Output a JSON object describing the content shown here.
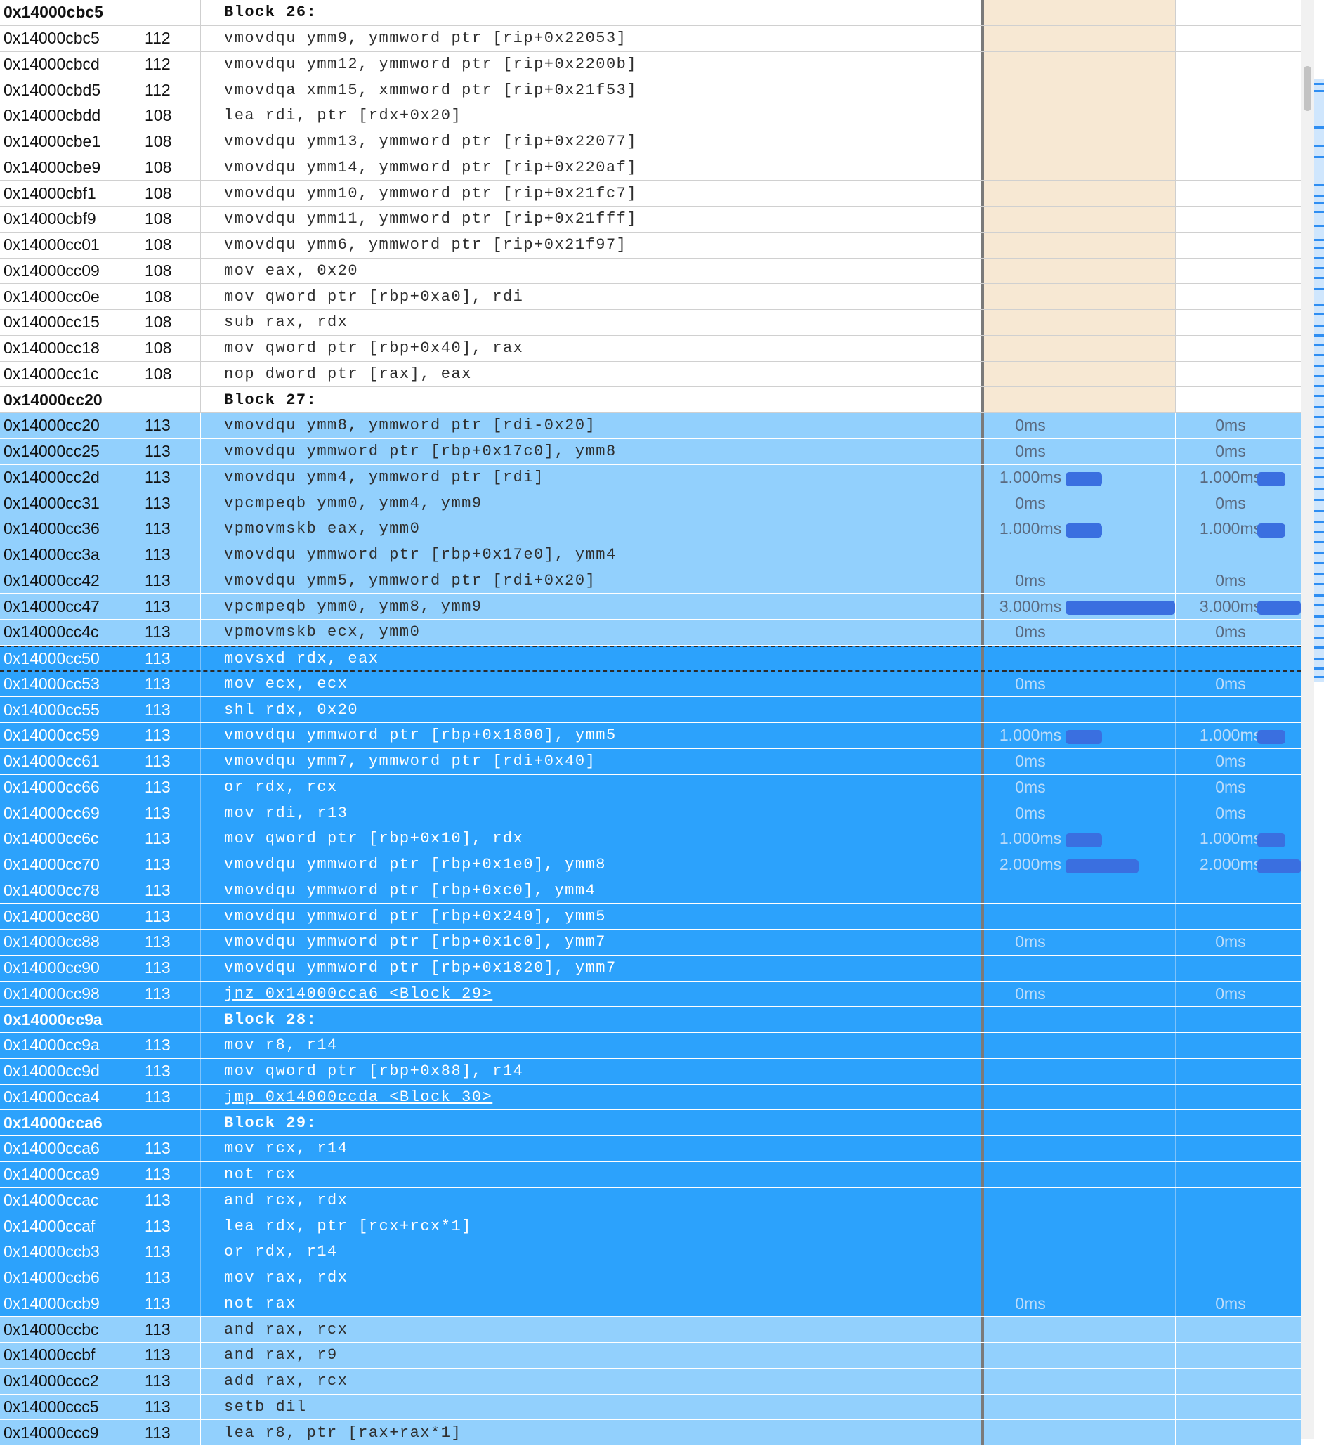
{
  "colors": {
    "light_selection": "#92d0fd",
    "dark_selection": "#2ca2fc",
    "header_pane": "#f7e8d3",
    "bar": "#3a6fe0"
  },
  "rows": [
    {
      "addr": "0x14000cbc5",
      "line": "",
      "asm": "Block 26:",
      "header": true,
      "bg": "plain",
      "t1": "",
      "t2": ""
    },
    {
      "addr": "0x14000cbc5",
      "line": "112",
      "asm": "vmovdqu ymm9, ymmword ptr [rip+0x22053]",
      "bg": "plain",
      "t1": "",
      "t2": ""
    },
    {
      "addr": "0x14000cbcd",
      "line": "112",
      "asm": "vmovdqu ymm12, ymmword ptr [rip+0x2200b]",
      "bg": "plain",
      "t1": "",
      "t2": ""
    },
    {
      "addr": "0x14000cbd5",
      "line": "112",
      "asm": "vmovdqa xmm15, xmmword ptr [rip+0x21f53]",
      "bg": "plain",
      "t1": "",
      "t2": ""
    },
    {
      "addr": "0x14000cbdd",
      "line": "108",
      "asm": "lea rdi, ptr [rdx+0x20]",
      "bg": "plain",
      "t1": "",
      "t2": ""
    },
    {
      "addr": "0x14000cbe1",
      "line": "108",
      "asm": "vmovdqu ymm13, ymmword ptr [rip+0x22077]",
      "bg": "plain",
      "t1": "",
      "t2": ""
    },
    {
      "addr": "0x14000cbe9",
      "line": "108",
      "asm": "vmovdqu ymm14, ymmword ptr [rip+0x220af]",
      "bg": "plain",
      "t1": "",
      "t2": ""
    },
    {
      "addr": "0x14000cbf1",
      "line": "108",
      "asm": "vmovdqu ymm10, ymmword ptr [rip+0x21fc7]",
      "bg": "plain",
      "t1": "",
      "t2": ""
    },
    {
      "addr": "0x14000cbf9",
      "line": "108",
      "asm": "vmovdqu ymm11, ymmword ptr [rip+0x21fff]",
      "bg": "plain",
      "t1": "",
      "t2": ""
    },
    {
      "addr": "0x14000cc01",
      "line": "108",
      "asm": "vmovdqu ymm6, ymmword ptr [rip+0x21f97]",
      "bg": "plain",
      "t1": "",
      "t2": ""
    },
    {
      "addr": "0x14000cc09",
      "line": "108",
      "asm": "mov eax, 0x20",
      "bg": "plain",
      "t1": "",
      "t2": ""
    },
    {
      "addr": "0x14000cc0e",
      "line": "108",
      "asm": "mov qword ptr [rbp+0xa0], rdi",
      "bg": "plain",
      "t1": "",
      "t2": ""
    },
    {
      "addr": "0x14000cc15",
      "line": "108",
      "asm": "sub rax, rdx",
      "bg": "plain",
      "t1": "",
      "t2": ""
    },
    {
      "addr": "0x14000cc18",
      "line": "108",
      "asm": "mov qword ptr [rbp+0x40], rax",
      "bg": "plain",
      "t1": "",
      "t2": ""
    },
    {
      "addr": "0x14000cc1c",
      "line": "108",
      "asm": "nop dword ptr [rax], eax",
      "bg": "plain",
      "t1": "",
      "t2": ""
    },
    {
      "addr": "0x14000cc20",
      "line": "",
      "asm": "Block 27:",
      "header": true,
      "bg": "plain",
      "t1": "",
      "t2": ""
    },
    {
      "addr": "0x14000cc20",
      "line": "113",
      "asm": "vmovdqu ymm8, ymmword ptr [rdi-0x20]",
      "bg": "light",
      "t1": "0ms",
      "t2": "0ms"
    },
    {
      "addr": "0x14000cc25",
      "line": "113",
      "asm": "vmovdqu ymmword ptr [rbp+0x17c0], ymm8",
      "bg": "light",
      "t1": "0ms",
      "t2": "0ms"
    },
    {
      "addr": "0x14000cc2d",
      "line": "113",
      "asm": "vmovdqu ymm4, ymmword ptr [rdi]",
      "bg": "light",
      "t1": "1.000ms",
      "t2": "1.000ms",
      "ms": 1
    },
    {
      "addr": "0x14000cc31",
      "line": "113",
      "asm": "vpcmpeqb ymm0, ymm4, ymm9",
      "bg": "light",
      "t1": "0ms",
      "t2": "0ms"
    },
    {
      "addr": "0x14000cc36",
      "line": "113",
      "asm": "vpmovmskb eax, ymm0",
      "bg": "light",
      "t1": "1.000ms",
      "t2": "1.000ms",
      "ms": 1
    },
    {
      "addr": "0x14000cc3a",
      "line": "113",
      "asm": "vmovdqu ymmword ptr [rbp+0x17e0], ymm4",
      "bg": "light",
      "t1": "",
      "t2": ""
    },
    {
      "addr": "0x14000cc42",
      "line": "113",
      "asm": "vmovdqu ymm5, ymmword ptr [rdi+0x20]",
      "bg": "light",
      "t1": "0ms",
      "t2": "0ms"
    },
    {
      "addr": "0x14000cc47",
      "line": "113",
      "asm": "vpcmpeqb ymm0, ymm8, ymm9",
      "bg": "light",
      "t1": "3.000ms",
      "t2": "3.000ms",
      "ms": 3
    },
    {
      "addr": "0x14000cc4c",
      "line": "113",
      "asm": "vpmovmskb ecx, ymm0",
      "bg": "light",
      "t1": "0ms",
      "t2": "0ms"
    },
    {
      "addr": "0x14000cc50",
      "line": "113",
      "asm": "movsxd rdx, eax",
      "bg": "dark",
      "dashed": true,
      "t1": "",
      "t2": ""
    },
    {
      "addr": "0x14000cc53",
      "line": "113",
      "asm": "mov ecx, ecx",
      "bg": "dark",
      "t1": "0ms",
      "t2": "0ms"
    },
    {
      "addr": "0x14000cc55",
      "line": "113",
      "asm": "shl rdx, 0x20",
      "bg": "dark",
      "t1": "",
      "t2": ""
    },
    {
      "addr": "0x14000cc59",
      "line": "113",
      "asm": "vmovdqu ymmword ptr [rbp+0x1800], ymm5",
      "bg": "dark",
      "t1": "1.000ms",
      "t2": "1.000ms",
      "ms": 1
    },
    {
      "addr": "0x14000cc61",
      "line": "113",
      "asm": "vmovdqu ymm7, ymmword ptr [rdi+0x40]",
      "bg": "dark",
      "t1": "0ms",
      "t2": "0ms"
    },
    {
      "addr": "0x14000cc66",
      "line": "113",
      "asm": "or rdx, rcx",
      "bg": "dark",
      "t1": "0ms",
      "t2": "0ms"
    },
    {
      "addr": "0x14000cc69",
      "line": "113",
      "asm": "mov rdi, r13",
      "bg": "dark",
      "t1": "0ms",
      "t2": "0ms"
    },
    {
      "addr": "0x14000cc6c",
      "line": "113",
      "asm": "mov qword ptr [rbp+0x10], rdx",
      "bg": "dark",
      "t1": "1.000ms",
      "t2": "1.000ms",
      "ms": 1
    },
    {
      "addr": "0x14000cc70",
      "line": "113",
      "asm": "vmovdqu ymmword ptr [rbp+0x1e0], ymm8",
      "bg": "dark",
      "t1": "2.000ms",
      "t2": "2.000ms",
      "ms": 2
    },
    {
      "addr": "0x14000cc78",
      "line": "113",
      "asm": "vmovdqu ymmword ptr [rbp+0xc0], ymm4",
      "bg": "dark",
      "t1": "",
      "t2": ""
    },
    {
      "addr": "0x14000cc80",
      "line": "113",
      "asm": "vmovdqu ymmword ptr [rbp+0x240], ymm5",
      "bg": "dark",
      "t1": "",
      "t2": ""
    },
    {
      "addr": "0x14000cc88",
      "line": "113",
      "asm": "vmovdqu ymmword ptr [rbp+0x1c0], ymm7",
      "bg": "dark",
      "t1": "0ms",
      "t2": "0ms"
    },
    {
      "addr": "0x14000cc90",
      "line": "113",
      "asm": "vmovdqu ymmword ptr [rbp+0x1820], ymm7",
      "bg": "dark",
      "t1": "",
      "t2": ""
    },
    {
      "addr": "0x14000cc98",
      "line": "113",
      "asm": "jnz 0x14000cca6 <Block 29>",
      "link": true,
      "bg": "dark",
      "t1": "0ms",
      "t2": "0ms"
    },
    {
      "addr": "0x14000cc9a",
      "line": "",
      "asm": "Block 28:",
      "header": true,
      "bg": "dark",
      "t1": "",
      "t2": ""
    },
    {
      "addr": "0x14000cc9a",
      "line": "113",
      "asm": "mov r8, r14",
      "bg": "dark",
      "t1": "",
      "t2": ""
    },
    {
      "addr": "0x14000cc9d",
      "line": "113",
      "asm": "mov qword ptr [rbp+0x88], r14",
      "bg": "dark",
      "t1": "",
      "t2": ""
    },
    {
      "addr": "0x14000cca4",
      "line": "113",
      "asm": "jmp 0x14000ccda <Block 30>",
      "link": true,
      "bg": "dark",
      "t1": "",
      "t2": ""
    },
    {
      "addr": "0x14000cca6",
      "line": "",
      "asm": "Block 29:",
      "header": true,
      "bg": "dark",
      "t1": "",
      "t2": ""
    },
    {
      "addr": "0x14000cca6",
      "line": "113",
      "asm": "mov rcx, r14",
      "bg": "dark",
      "t1": "",
      "t2": ""
    },
    {
      "addr": "0x14000cca9",
      "line": "113",
      "asm": "not rcx",
      "bg": "dark",
      "t1": "",
      "t2": ""
    },
    {
      "addr": "0x14000ccac",
      "line": "113",
      "asm": "and rcx, rdx",
      "bg": "dark",
      "t1": "",
      "t2": ""
    },
    {
      "addr": "0x14000ccaf",
      "line": "113",
      "asm": "lea rdx, ptr [rcx+rcx*1]",
      "bg": "dark",
      "t1": "",
      "t2": ""
    },
    {
      "addr": "0x14000ccb3",
      "line": "113",
      "asm": "or rdx, r14",
      "bg": "dark",
      "t1": "",
      "t2": ""
    },
    {
      "addr": "0x14000ccb6",
      "line": "113",
      "asm": "mov rax, rdx",
      "bg": "dark",
      "t1": "",
      "t2": ""
    },
    {
      "addr": "0x14000ccb9",
      "line": "113",
      "asm": "not rax",
      "bg": "dark",
      "t1": "0ms",
      "t2": "0ms"
    },
    {
      "addr": "0x14000ccbc",
      "line": "113",
      "asm": "and rax, rcx",
      "bg": "light",
      "t1": "",
      "t2": ""
    },
    {
      "addr": "0x14000ccbf",
      "line": "113",
      "asm": "and rax, r9",
      "bg": "light",
      "t1": "",
      "t2": ""
    },
    {
      "addr": "0x14000ccc2",
      "line": "113",
      "asm": "add rax, rcx",
      "bg": "light",
      "t1": "",
      "t2": ""
    },
    {
      "addr": "0x14000ccc5",
      "line": "113",
      "asm": "setb dil",
      "bg": "light",
      "t1": "",
      "t2": ""
    },
    {
      "addr": "0x14000ccc9",
      "line": "113",
      "asm": "lea r8, ptr [rax+rax*1]",
      "bg": "light",
      "t1": "",
      "t2": ""
    }
  ]
}
